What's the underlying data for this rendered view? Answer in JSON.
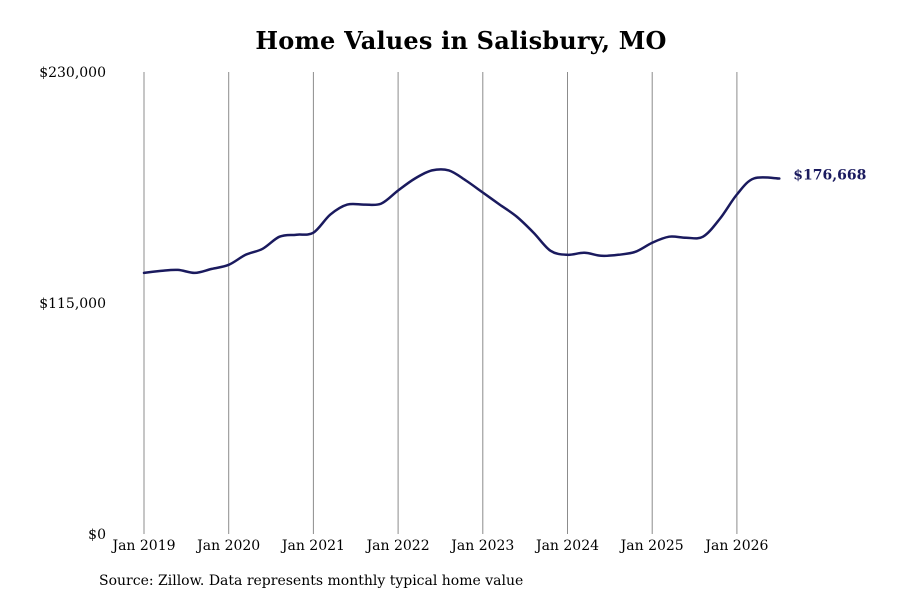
{
  "chart_data": {
    "type": "line",
    "title": "Home Values in Salisbury, MO",
    "source": "Source: Zillow. Data represents monthly typical home value",
    "ylim": [
      0,
      230000
    ],
    "yticks": [
      {
        "value": 230000,
        "label": "$230,000"
      },
      {
        "value": 115000,
        "label": "$115,000"
      },
      {
        "value": 0,
        "label": "$0"
      }
    ],
    "xticks": [
      {
        "value": 2019.0,
        "label": "Jan 2019"
      },
      {
        "value": 2020.0,
        "label": "Jan 2020"
      },
      {
        "value": 2021.0,
        "label": "Jan 2021"
      },
      {
        "value": 2022.0,
        "label": "Jan 2022"
      },
      {
        "value": 2023.0,
        "label": "Jan 2023"
      },
      {
        "value": 2024.0,
        "label": "Jan 2024"
      },
      {
        "value": 2025.0,
        "label": "Jan 2025"
      },
      {
        "value": 2026.0,
        "label": "Jan 2026"
      }
    ],
    "xlim": [
      2019.0,
      2026.5
    ],
    "vertical_grid": true,
    "line_color": "#1a1a5e",
    "grid_color": "#8c8c8c",
    "end_label": "$176,668",
    "series": [
      {
        "x": [
          2019.0,
          2019.2,
          2019.4,
          2019.6,
          2019.8,
          2020.0,
          2020.2,
          2020.4,
          2020.6,
          2020.8,
          2021.0,
          2021.2,
          2021.4,
          2021.6,
          2021.8,
          2022.0,
          2022.2,
          2022.4,
          2022.6,
          2022.8,
          2023.0,
          2023.2,
          2023.4,
          2023.6,
          2023.8,
          2024.0,
          2024.2,
          2024.4,
          2024.6,
          2024.8,
          2025.0,
          2025.2,
          2025.4,
          2025.6,
          2025.8,
          2026.0,
          2026.2,
          2026.5
        ],
        "y": [
          130000,
          131000,
          131500,
          130000,
          132000,
          134000,
          139000,
          142000,
          148000,
          149000,
          150000,
          159000,
          164000,
          164000,
          164500,
          171000,
          177000,
          181000,
          181000,
          176000,
          170000,
          164000,
          158000,
          150000,
          141000,
          139000,
          140000,
          138500,
          139000,
          140500,
          145000,
          148000,
          147500,
          148000,
          157000,
          169000,
          177000,
          177000
        ]
      }
    ]
  }
}
